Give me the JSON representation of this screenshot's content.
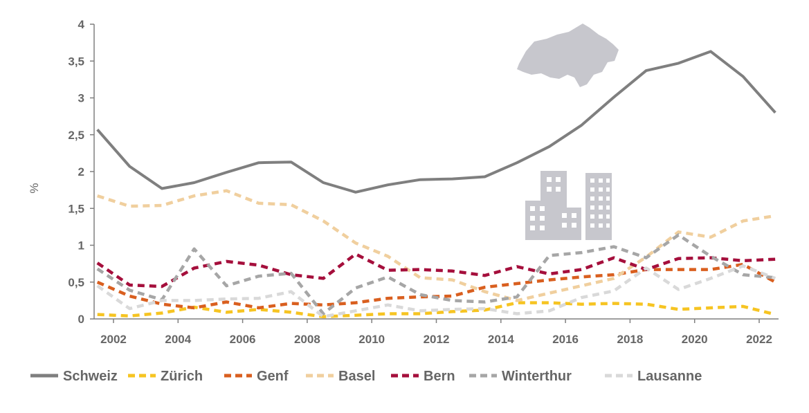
{
  "chart_data": {
    "type": "line",
    "title": "",
    "xlabel": "",
    "ylabel": "%",
    "ylim": [
      0,
      4
    ],
    "xlim": [
      2001.4,
      2022.6
    ],
    "yticks": [
      "0",
      "0,5",
      "1",
      "1,5",
      "2",
      "2,5",
      "3",
      "3,5",
      "4"
    ],
    "xticks": [
      "2002",
      "2004",
      "2006",
      "2008",
      "2010",
      "2012",
      "2014",
      "2016",
      "2018",
      "2020",
      "2022"
    ],
    "grid": false,
    "legend_position": "bottom",
    "x": [
      2001.5,
      2002.5,
      2003.5,
      2004.5,
      2005.5,
      2006.5,
      2007.5,
      2008.5,
      2009.5,
      2010.5,
      2011.5,
      2012.5,
      2013.5,
      2014.5,
      2015.5,
      2016.5,
      2017.5,
      2018.5,
      2019.5,
      2020.5,
      2021.5,
      2022.5
    ],
    "series": [
      {
        "name": "Schweiz",
        "color": "#7f7f7f",
        "dash": "solid",
        "values": [
          2.57,
          2.07,
          1.77,
          1.85,
          1.99,
          2.12,
          2.13,
          1.85,
          1.72,
          1.82,
          1.89,
          1.9,
          1.93,
          2.12,
          2.34,
          2.63,
          3.01,
          3.37,
          3.47,
          3.63,
          3.29,
          2.8
        ]
      },
      {
        "name": "Zürich",
        "color": "#f6c422",
        "dash": "dashed",
        "values": [
          0.06,
          0.04,
          0.08,
          0.16,
          0.09,
          0.13,
          0.09,
          0.03,
          0.05,
          0.07,
          0.07,
          0.1,
          0.12,
          0.22,
          0.22,
          0.2,
          0.21,
          0.2,
          0.13,
          0.15,
          0.17,
          0.06
        ]
      },
      {
        "name": "Genf",
        "color": "#d95f1f",
        "dash": "dashed",
        "values": [
          0.5,
          0.31,
          0.2,
          0.15,
          0.23,
          0.15,
          0.21,
          0.19,
          0.22,
          0.28,
          0.3,
          0.31,
          0.43,
          0.48,
          0.53,
          0.57,
          0.6,
          0.67,
          0.67,
          0.67,
          0.74,
          0.5
        ]
      },
      {
        "name": "Basel",
        "color": "#f0cf9e",
        "dash": "dashed",
        "values": [
          1.67,
          1.53,
          1.54,
          1.67,
          1.74,
          1.57,
          1.55,
          1.33,
          1.03,
          0.85,
          0.56,
          0.53,
          0.37,
          0.25,
          0.35,
          0.45,
          0.55,
          0.84,
          1.18,
          1.11,
          1.33,
          1.4
        ]
      },
      {
        "name": "Bern",
        "color": "#a50f3c",
        "dash": "dashed",
        "values": [
          0.76,
          0.46,
          0.44,
          0.69,
          0.78,
          0.73,
          0.6,
          0.55,
          0.88,
          0.66,
          0.67,
          0.65,
          0.59,
          0.71,
          0.61,
          0.67,
          0.83,
          0.67,
          0.82,
          0.83,
          0.79,
          0.81
        ]
      },
      {
        "name": "Winterthur",
        "color": "#a6a6a6",
        "dash": "dashed",
        "values": [
          0.68,
          0.39,
          0.26,
          0.95,
          0.45,
          0.58,
          0.62,
          0.07,
          0.42,
          0.57,
          0.33,
          0.25,
          0.23,
          0.3,
          0.86,
          0.9,
          0.98,
          0.83,
          1.14,
          0.85,
          0.6,
          0.56
        ]
      },
      {
        "name": "Lausanne",
        "color": "#d9d9d9",
        "dash": "dashed",
        "values": [
          0.45,
          0.14,
          0.25,
          0.25,
          0.27,
          0.28,
          0.37,
          0.03,
          0.11,
          0.19,
          0.11,
          0.13,
          0.14,
          0.07,
          0.11,
          0.29,
          0.38,
          0.69,
          0.4,
          0.55,
          0.72,
          0.55
        ]
      }
    ]
  },
  "icons": {
    "map": "switzerland-map-icon",
    "buildings": "buildings-icon",
    "icon_color": "#c7c7cd"
  }
}
